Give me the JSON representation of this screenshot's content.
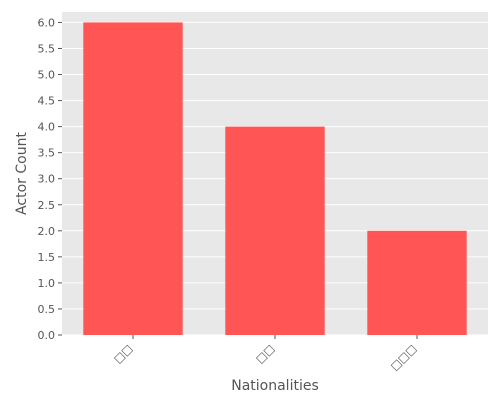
{
  "chart_data": {
    "type": "bar",
    "categories": [
      "□□",
      "□□",
      "□□□"
    ],
    "values": [
      6,
      4,
      2
    ],
    "title": "",
    "xlabel": "Nationalities",
    "ylabel": "Actor Count",
    "ylim": [
      0,
      6.2
    ],
    "yticks": [
      "0.0",
      "0.5",
      "1.0",
      "1.5",
      "2.0",
      "2.5",
      "3.0",
      "3.5",
      "4.0",
      "4.5",
      "5.0",
      "5.5",
      "6.0"
    ],
    "grid": true,
    "legend": "none",
    "colors": {
      "bar": "#ff5555",
      "background": "#e8e8e8",
      "grid": "#ffffff",
      "text": "#555555"
    }
  }
}
